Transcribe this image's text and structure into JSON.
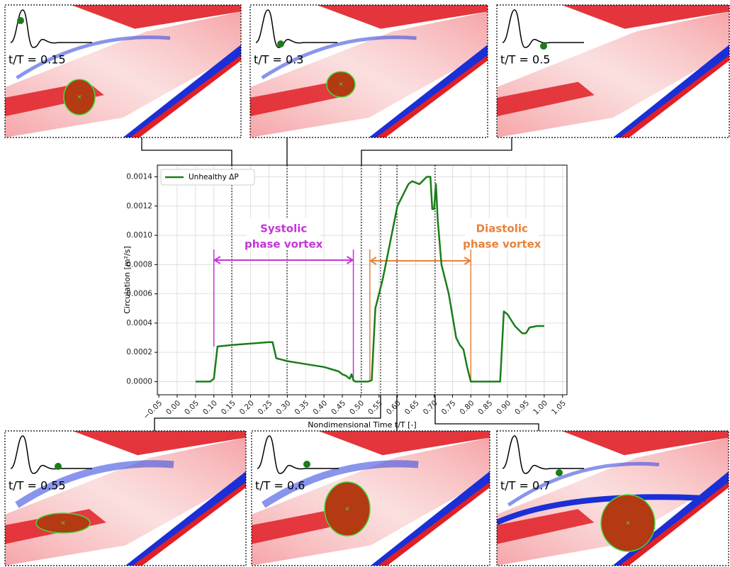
{
  "chart_data": {
    "type": "line",
    "x_label": "Nondimensional Time t/T [-]",
    "y_label": "Circulation [m²/s]",
    "xlim": [
      -0.054,
      1.062
    ],
    "ylim": [
      -9e-05,
      0.00148
    ],
    "xticks": [
      {
        "value": -0.05,
        "label": "−0.05"
      },
      {
        "value": 0,
        "label": "0.00"
      },
      {
        "value": 0.05,
        "label": "0.05"
      },
      {
        "value": 0.1,
        "label": "0.10"
      },
      {
        "value": 0.15,
        "label": "0.15"
      },
      {
        "value": 0.2,
        "label": "0.20"
      },
      {
        "value": 0.25,
        "label": "0.25"
      },
      {
        "value": 0.3,
        "label": "0.30"
      },
      {
        "value": 0.35,
        "label": "0.35"
      },
      {
        "value": 0.4,
        "label": "0.40"
      },
      {
        "value": 0.45,
        "label": "0.45"
      },
      {
        "value": 0.5,
        "label": "0.50"
      },
      {
        "value": 0.55,
        "label": "0.55"
      },
      {
        "value": 0.6,
        "label": "0.60"
      },
      {
        "value": 0.65,
        "label": "0.65"
      },
      {
        "value": 0.7,
        "label": "0.70"
      },
      {
        "value": 0.75,
        "label": "0.75"
      },
      {
        "value": 0.8,
        "label": "0.80"
      },
      {
        "value": 0.85,
        "label": "0.85"
      },
      {
        "value": 0.9,
        "label": "0.90"
      },
      {
        "value": 0.95,
        "label": "0.95"
      },
      {
        "value": 1,
        "label": "1.00"
      },
      {
        "value": 1.05,
        "label": "1.05"
      }
    ],
    "yticks": [
      {
        "value": 0,
        "label": "0.0000"
      },
      {
        "value": 0.0002,
        "label": "0.0002"
      },
      {
        "value": 0.0004,
        "label": "0.0004"
      },
      {
        "value": 0.0006,
        "label": "0.0006"
      },
      {
        "value": 0.0008,
        "label": "0.0008"
      },
      {
        "value": 0.001,
        "label": "0.0010"
      },
      {
        "value": 0.0012,
        "label": "0.0012"
      },
      {
        "value": 0.0014,
        "label": "0.0014"
      }
    ],
    "grid": true,
    "legend": "upper left",
    "series": [
      {
        "name": "Unhealthy ΔP",
        "color": "#1a7d1a",
        "x": [
          0.05,
          0.09,
          0.1,
          0.11,
          0.15,
          0.2,
          0.25,
          0.26,
          0.27,
          0.3,
          0.35,
          0.4,
          0.44,
          0.45,
          0.46,
          0.47,
          0.475,
          0.48,
          0.485,
          0.52,
          0.53,
          0.54,
          0.56,
          0.58,
          0.6,
          0.62,
          0.63,
          0.64,
          0.66,
          0.68,
          0.69,
          0.695,
          0.7,
          0.705,
          0.71,
          0.72,
          0.74,
          0.76,
          0.77,
          0.78,
          0.79,
          0.8,
          0.88,
          0.89,
          0.9,
          0.92,
          0.94,
          0.95,
          0.96,
          0.98,
          1.0
        ],
        "values": [
          0,
          0,
          2e-05,
          0.00024,
          0.00025,
          0.00026,
          0.00027,
          0.00027,
          0.00016,
          0.00014,
          0.00012,
          0.0001,
          7e-05,
          5e-05,
          4e-05,
          2e-05,
          5e-05,
          1e-05,
          0,
          0,
          1e-05,
          0.0005,
          0.0007,
          0.00095,
          0.0012,
          0.0013,
          0.00135,
          0.00137,
          0.00135,
          0.0014,
          0.0014,
          0.00118,
          0.00118,
          0.00135,
          0.0011,
          0.0008,
          0.0006,
          0.0003,
          0.00025,
          0.00022,
          0.0001,
          0,
          0,
          0.00048,
          0.00046,
          0.00038,
          0.00033,
          0.00033,
          0.00037,
          0.00038,
          0.00038
        ]
      }
    ],
    "spans": [
      {
        "text": [
          "Systolic",
          "phase vortex"
        ],
        "color": "#c535d6",
        "range": [
          0.1,
          0.48
        ]
      },
      {
        "text": [
          "Diastolic",
          "phase vortex"
        ],
        "color": "#e8823a",
        "range": [
          0.525,
          0.8
        ]
      }
    ]
  },
  "panels": [
    {
      "label": "t/T = 0.15"
    },
    {
      "label": "t/T = 0.3"
    },
    {
      "label": "t/T = 0.5"
    },
    {
      "label": "t/T = 0.55"
    },
    {
      "label": "t/T = 0.6"
    },
    {
      "label": "t/T = 0.7"
    }
  ]
}
